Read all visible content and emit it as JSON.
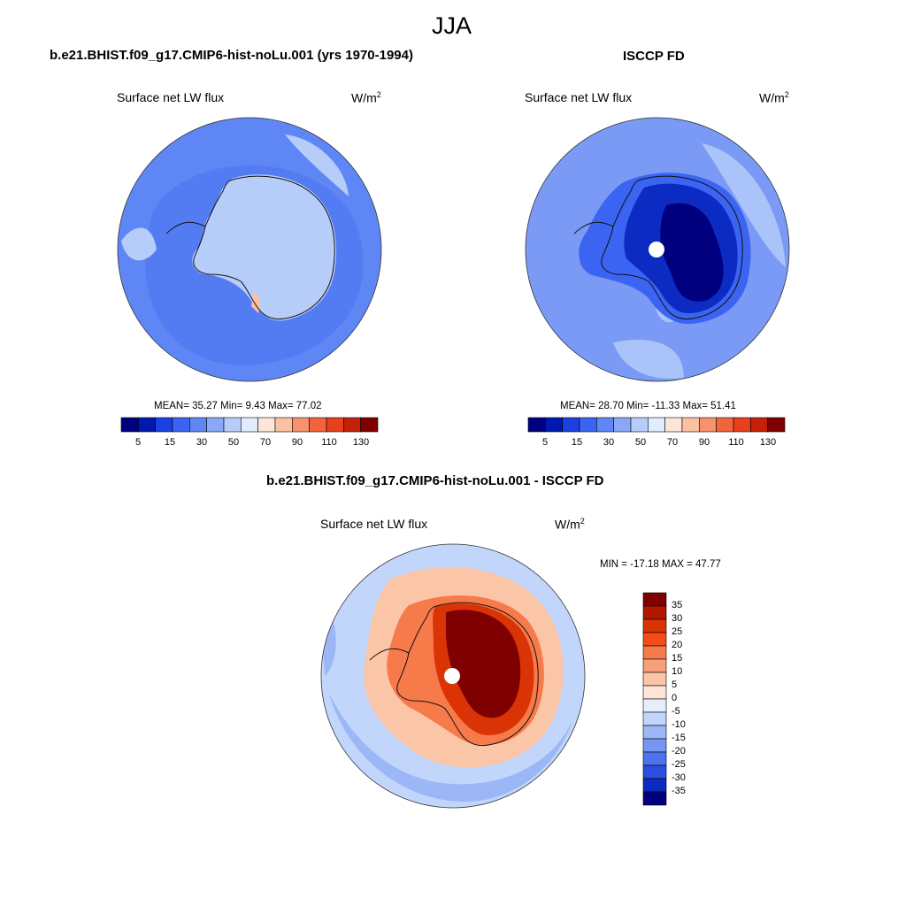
{
  "figure": {
    "season": "JJA"
  },
  "panels": [
    {
      "title": "b.e21.BHIST.f09_g17.CMIP6-hist-noLu.001 (yrs 1970-1994)",
      "variable": "Surface net LW flux",
      "units_base": "W/m",
      "units_exp": "2",
      "stats_text": "MEAN=  35.27  Min=   9.43  Max=  77.02"
    },
    {
      "title": "ISCCP FD",
      "variable": "Surface net LW flux",
      "units_base": "W/m",
      "units_exp": "2",
      "stats_text": "MEAN=  28.70  Min= -11.33  Max=  51.41"
    },
    {
      "title": "b.e21.BHIST.f09_g17.CMIP6-hist-noLu.001 - ISCCP FD",
      "variable": "Surface net LW flux",
      "units_base": "W/m",
      "units_exp": "2",
      "stats_text": "MIN = -17.18 MAX =  47.77"
    }
  ],
  "colorbar_abs": {
    "colors": [
      "#00007f",
      "#0018b0",
      "#1c3fe0",
      "#3b64f2",
      "#5f86f5",
      "#8aa8f7",
      "#b6cdfa",
      "#e1ecfd",
      "#fde6d8",
      "#fbc1a2",
      "#f7916e",
      "#f2643e",
      "#e7401c",
      "#c4200a",
      "#7e0000"
    ],
    "tick_labels": [
      "5",
      "15",
      "30",
      "50",
      "70",
      "90",
      "110",
      "130"
    ]
  },
  "colorbar_diff": {
    "colors_top_to_bottom": [
      "#7e0000",
      "#b01800",
      "#d93306",
      "#f24c18",
      "#f77a4a",
      "#f8a07b",
      "#fbc6a8",
      "#fde6d8",
      "#e6eefd",
      "#c2d5fa",
      "#9bb7f7",
      "#7497f4",
      "#4b74ee",
      "#2a4fe0",
      "#0c2bc2",
      "#00007f"
    ],
    "tick_labels": [
      "35",
      "30",
      "25",
      "20",
      "15",
      "10",
      "5",
      "0",
      "-5",
      "-10",
      "-15",
      "-20",
      "-25",
      "-30",
      "-35"
    ]
  },
  "map_colors": {
    "model_ocean": "#5f86f5",
    "model_ice": "#b6cdfa",
    "model_band": "#4b74ee",
    "obs_ocean": "#7a9af5",
    "obs_light": "#aac3f8",
    "obs_mid": "#3b64f2",
    "obs_dark": "#0c2bc2",
    "obs_deepest": "#00007f",
    "diff_ocean": "#c2d5fa",
    "diff_light": "#9bb7f7",
    "diff_warm1": "#fbc6a8",
    "diff_warm2": "#f77a4a",
    "diff_warm3": "#d93306",
    "diff_hot": "#7e0000",
    "coastline": "#111111",
    "pole_hole": "#ffffff"
  }
}
